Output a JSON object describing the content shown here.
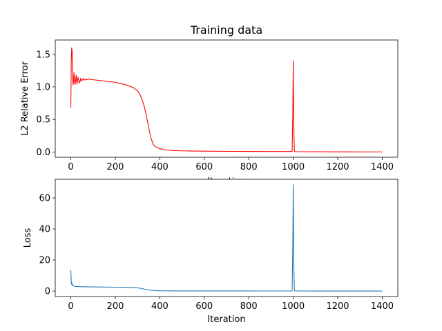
{
  "chart_data": [
    {
      "type": "line",
      "title": "Training data",
      "xlabel": "Iteration",
      "ylabel": "L2 Relative Error",
      "xlim": [
        -70,
        1470
      ],
      "ylim": [
        -0.08,
        1.72
      ],
      "xticks": [
        0,
        200,
        400,
        600,
        800,
        1000,
        1200,
        1400
      ],
      "yticks": [
        0.0,
        0.5,
        1.0,
        1.5
      ],
      "ytick_labels": [
        "0.0",
        "0.5",
        "1.0",
        "1.5"
      ],
      "grid": false,
      "series": [
        {
          "color": "#ff0000",
          "x": [
            0,
            2,
            4,
            6,
            8,
            10,
            12,
            14,
            16,
            18,
            20,
            22,
            24,
            26,
            28,
            30,
            33,
            36,
            40,
            44,
            48,
            52,
            56,
            60,
            65,
            70,
            80,
            100,
            150,
            200,
            250,
            280,
            300,
            310,
            320,
            330,
            340,
            350,
            360,
            370,
            380,
            390,
            395,
            400,
            410,
            420,
            450,
            500,
            550,
            600,
            700,
            800,
            900,
            995,
            998,
            1000,
            1002,
            1005,
            1010,
            1100,
            1200,
            1300,
            1400
          ],
          "y": [
            0.68,
            1.4,
            1.6,
            1.55,
            1.2,
            1.03,
            1.08,
            1.22,
            1.15,
            1.04,
            1.05,
            1.12,
            1.18,
            1.1,
            1.04,
            1.1,
            1.15,
            1.08,
            1.06,
            1.13,
            1.09,
            1.11,
            1.13,
            1.1,
            1.12,
            1.11,
            1.12,
            1.11,
            1.09,
            1.07,
            1.03,
            0.99,
            0.94,
            0.89,
            0.81,
            0.7,
            0.55,
            0.38,
            0.22,
            0.12,
            0.08,
            0.07,
            0.06,
            0.05,
            0.045,
            0.035,
            0.025,
            0.018,
            0.015,
            0.013,
            0.01,
            0.009,
            0.008,
            0.008,
            0.6,
            1.4,
            0.5,
            0.01,
            0.006,
            0.004,
            0.003,
            0.002,
            0.002
          ]
        }
      ]
    },
    {
      "type": "line",
      "title": "",
      "xlabel": "Iteration",
      "ylabel": "Loss",
      "xlim": [
        -70,
        1470
      ],
      "ylim": [
        -3.5,
        72
      ],
      "xticks": [
        0,
        200,
        400,
        600,
        800,
        1000,
        1200,
        1400
      ],
      "yticks": [
        0,
        20,
        40,
        60
      ],
      "ytick_labels": [
        "0",
        "20",
        "40",
        "60"
      ],
      "grid": false,
      "series": [
        {
          "color": "#1f77b4",
          "x": [
            0,
            2,
            4,
            6,
            8,
            10,
            15,
            20,
            30,
            50,
            100,
            150,
            200,
            250,
            300,
            320,
            340,
            360,
            380,
            400,
            450,
            500,
            600,
            700,
            800,
            900,
            995,
            998,
            1000,
            1002,
            1005,
            1010,
            1100,
            1200,
            1300,
            1400
          ],
          "y": [
            13.5,
            6.0,
            4.2,
            5.0,
            3.6,
            3.8,
            3.1,
            3.0,
            2.9,
            2.8,
            2.7,
            2.6,
            2.5,
            2.4,
            2.1,
            1.6,
            1.0,
            0.5,
            0.3,
            0.2,
            0.15,
            0.1,
            0.08,
            0.07,
            0.06,
            0.05,
            0.05,
            30.0,
            68.5,
            20.0,
            0.2,
            0.05,
            0.04,
            0.03,
            0.03,
            0.03
          ]
        }
      ]
    }
  ]
}
